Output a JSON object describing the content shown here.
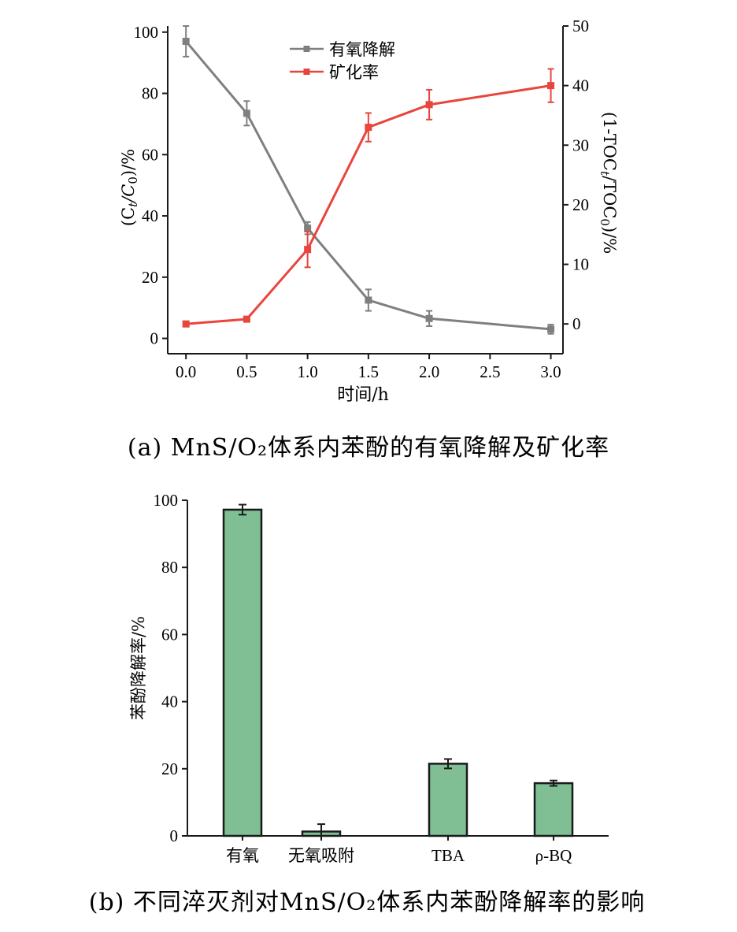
{
  "chart_data": [
    {
      "type": "line",
      "panel_caption": "(a) MnS/O₂体系内苯酚的有氧降解及矿化率",
      "xlabel": "时间/h",
      "ylabel_left_parts": [
        "(C",
        "t",
        "/C",
        "0",
        ")/%"
      ],
      "ylabel_right_parts": [
        "(1-TOC",
        "t",
        "/TOC",
        "0",
        ")/%"
      ],
      "xlim": [
        -0.15,
        3.1
      ],
      "ylim_left": [
        -5,
        102
      ],
      "ylim_right": [
        -5,
        50
      ],
      "x_ticks": [
        0.0,
        0.5,
        1.0,
        1.5,
        2.0,
        2.5,
        3.0
      ],
      "x_tick_labels": [
        "0.0",
        "0.5",
        "1.0",
        "1.5",
        "2.0",
        "2.5",
        "3.0"
      ],
      "y_left_ticks": [
        0,
        20,
        40,
        60,
        80,
        100
      ],
      "y_left_tick_labels": [
        "0",
        "20",
        "40",
        "60",
        "80",
        "100"
      ],
      "y_right_ticks": [
        0,
        10,
        20,
        30,
        40,
        50
      ],
      "y_right_tick_labels": [
        "0",
        "10",
        "20",
        "30",
        "40",
        "50"
      ],
      "legend_position": "top-center",
      "series": [
        {
          "name": "有氧降解",
          "axis": "left",
          "color": "#7f7f7f",
          "x": [
            0.0,
            0.5,
            1.0,
            1.5,
            2.0,
            3.0
          ],
          "y": [
            97,
            73.5,
            36,
            12.5,
            6.5,
            3
          ],
          "err": [
            5,
            4,
            2,
            3.5,
            2.5,
            1.5
          ]
        },
        {
          "name": "矿化率",
          "axis": "right",
          "color": "#e8453c",
          "x": [
            0.0,
            0.5,
            1.0,
            1.5,
            2.0,
            3.0
          ],
          "y": [
            0,
            0.8,
            12.5,
            33,
            36.8,
            40
          ],
          "err": [
            0.3,
            0.3,
            3,
            2.4,
            2.5,
            2.8
          ]
        }
      ]
    },
    {
      "type": "bar",
      "panel_caption": "(b) 不同淬灭剂对MnS/O₂体系内苯酚降解率的影响",
      "ylabel": "苯酚降解率/%",
      "categories": [
        "有氧",
        "无氧吸附",
        "TBA",
        "ρ-BQ"
      ],
      "values": [
        97.2,
        1.3,
        21.5,
        15.7
      ],
      "err": [
        1.5,
        2.2,
        1.4,
        0.8
      ],
      "ylim": [
        0,
        100
      ],
      "y_ticks": [
        0,
        20,
        40,
        60,
        80,
        100
      ],
      "y_tick_labels": [
        "0",
        "20",
        "40",
        "60",
        "80",
        "100"
      ],
      "bar_color": "#7fbf93",
      "edge_color": "#1a1a1a"
    }
  ]
}
